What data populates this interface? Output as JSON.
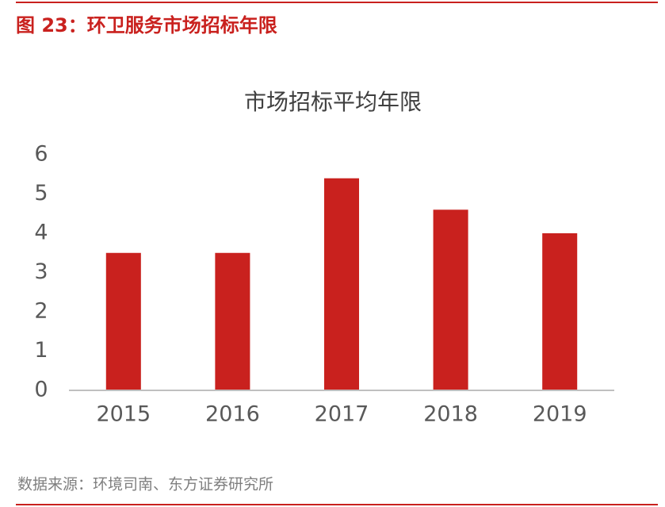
{
  "header": {
    "title": "图 23：环卫服务市场招标年限"
  },
  "chart_data": {
    "type": "bar",
    "title": "市场招标平均年限",
    "categories": [
      "2015",
      "2016",
      "2017",
      "2018",
      "2019"
    ],
    "values": [
      3.5,
      3.5,
      5.4,
      4.6,
      4.0
    ],
    "color": "#c9211e",
    "ylim": [
      0,
      6
    ],
    "yticks": [
      0,
      1,
      2,
      3,
      4,
      5,
      6
    ],
    "grid": false
  },
  "footer": {
    "source": "数据来源：环境司南、东方证券研究所"
  }
}
